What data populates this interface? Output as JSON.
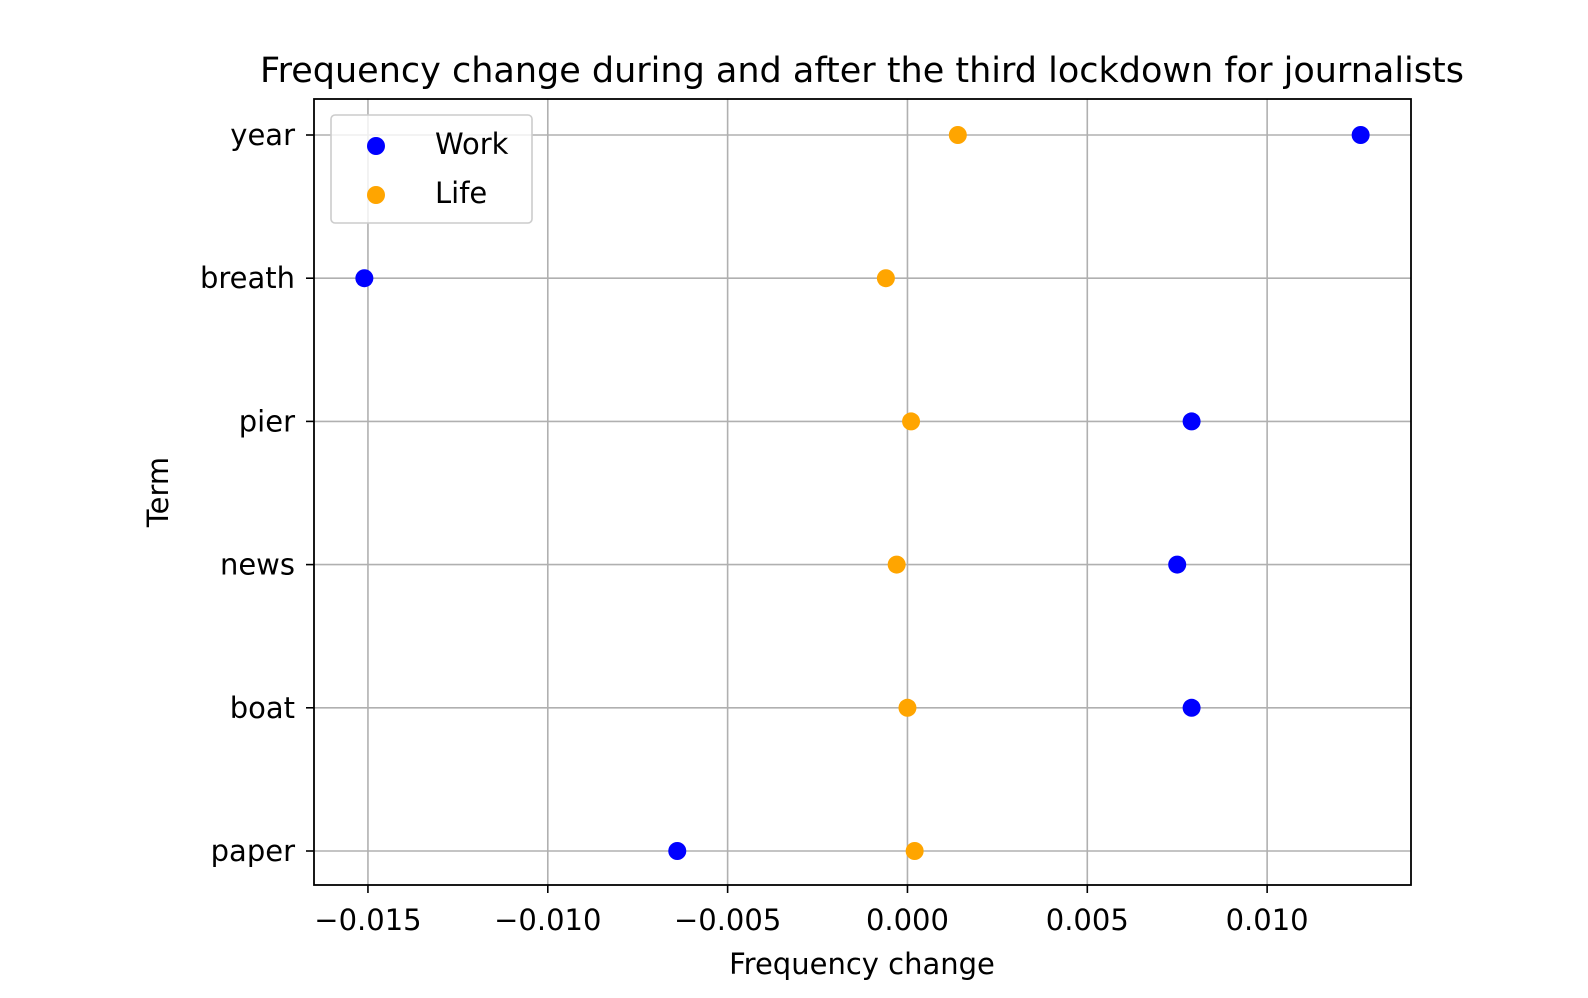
{
  "chart_data": {
    "type": "scatter",
    "title": "Frequency change during and after the third lockdown for journalists",
    "xlabel": "Frequency change",
    "ylabel": "Term",
    "categories": [
      "paper",
      "boat",
      "news",
      "pier",
      "breath",
      "year"
    ],
    "xlim": [
      -0.0165,
      0.014
    ],
    "xticks": [
      -0.015,
      -0.01,
      -0.005,
      0.0,
      0.005,
      0.01
    ],
    "xtick_labels": [
      "−0.015",
      "−0.010",
      "−0.005",
      "0.000",
      "0.005",
      "0.010"
    ],
    "grid": true,
    "legend_position": "top-left",
    "series": [
      {
        "name": "Work",
        "color": "#0000ff",
        "values": [
          -0.0064,
          0.0079,
          0.0075,
          0.0079,
          -0.0151,
          0.0126
        ]
      },
      {
        "name": "Life",
        "color": "#ffa500",
        "values": [
          0.0002,
          0.0,
          -0.0003,
          0.0001,
          -0.0006,
          0.0014
        ]
      }
    ]
  }
}
